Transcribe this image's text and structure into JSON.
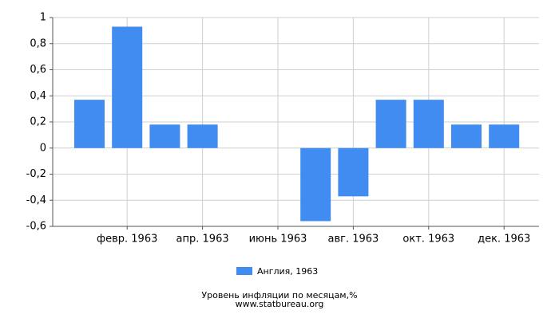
{
  "chart_data": {
    "type": "bar",
    "title": "Уровень инфляции по месяцам,%",
    "subtitle": "www.statbureau.org",
    "categories": [
      null,
      "февр. 1963",
      null,
      "апр. 1963",
      null,
      "июнь 1963",
      null,
      "авг. 1963",
      null,
      "окт. 1963",
      null,
      "дек. 1963"
    ],
    "series": [
      {
        "name": "Англия, 1963",
        "color": "#418cf0",
        "values": [
          0.37,
          0.93,
          0.18,
          0.18,
          0,
          0,
          -0.56,
          -0.37,
          0.37,
          0.37,
          0.18,
          0.18
        ]
      }
    ],
    "ylim": [
      -0.6,
      1
    ],
    "yticks": [
      {
        "value": -0.6,
        "label": "-0,6"
      },
      {
        "value": -0.4,
        "label": "-0,4"
      },
      {
        "value": -0.2,
        "label": "-0,2"
      },
      0,
      {
        "value": 0.2,
        "label": "0,2"
      },
      {
        "value": 0.4,
        "label": "0,4"
      },
      {
        "value": 0.6,
        "label": "0,6"
      },
      {
        "value": 0.8,
        "label": "0,8"
      },
      1
    ],
    "grid": true,
    "legend": "bottom"
  }
}
